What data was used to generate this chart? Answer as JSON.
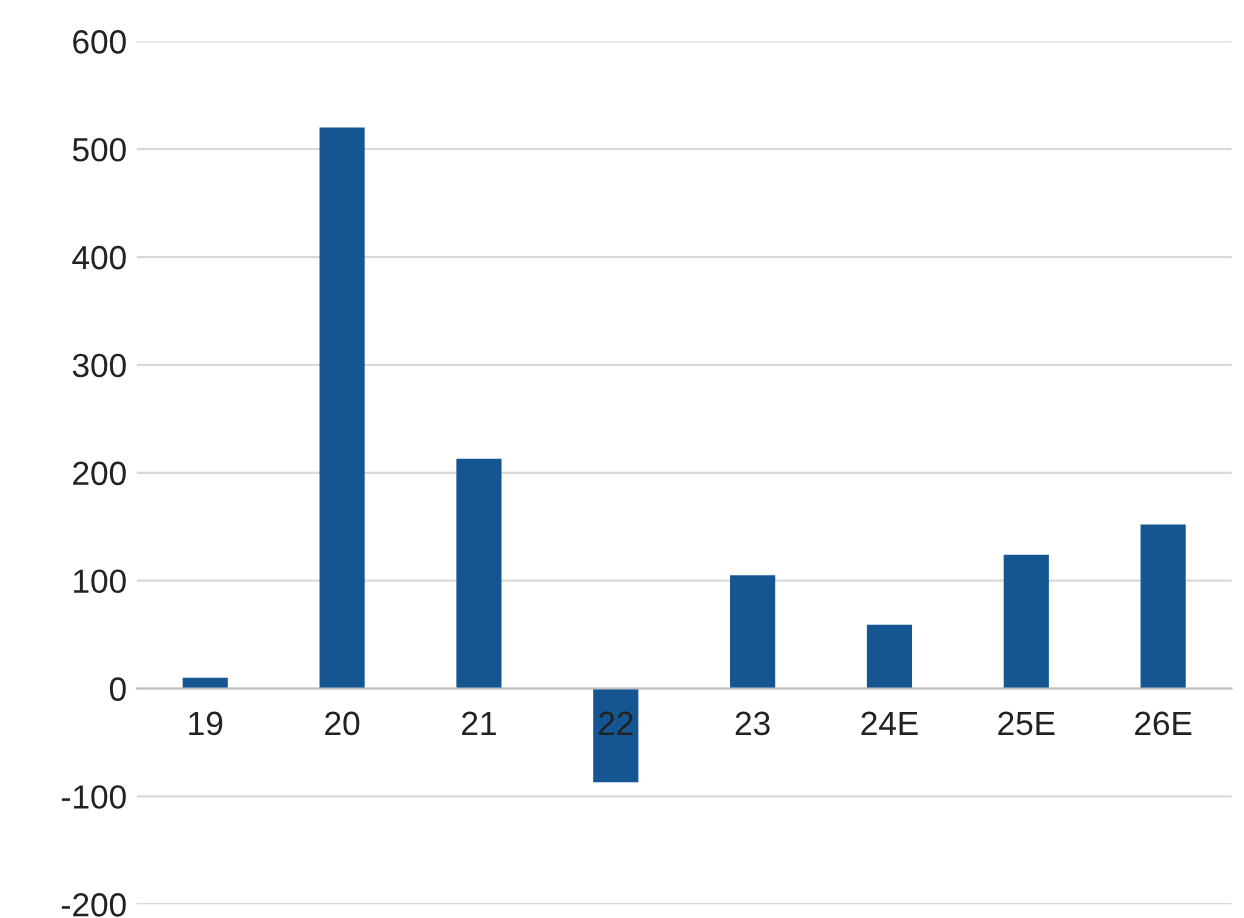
{
  "chart_data": {
    "type": "bar",
    "categories": [
      "19",
      "20",
      "21",
      "22",
      "23",
      "24E",
      "25E",
      "26E"
    ],
    "values": [
      10,
      520,
      213,
      -87,
      105,
      59,
      124,
      152
    ],
    "color": "#155591",
    "ylim": [
      -200,
      600
    ],
    "yticks": [
      -200,
      -100,
      0,
      100,
      200,
      300,
      400,
      500,
      600
    ],
    "grid": "y"
  }
}
